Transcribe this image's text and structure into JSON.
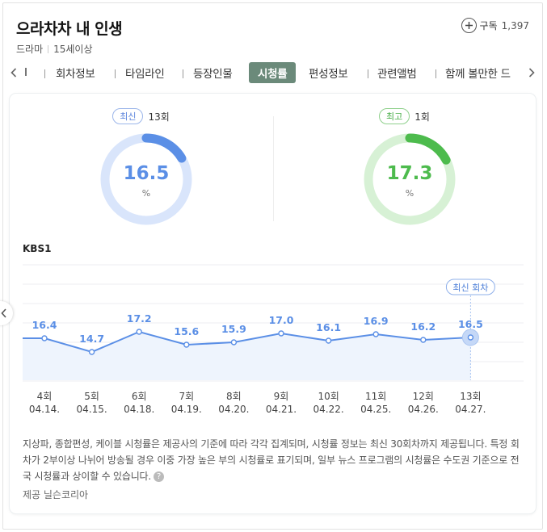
{
  "header": {
    "title": "으라차차 내 인생",
    "genre": "드라마",
    "rating": "15세이상",
    "subscribe_label": "구독",
    "subscribe_count": "1,397"
  },
  "tabs": [
    {
      "label": "I",
      "active": false
    },
    {
      "label": "회차정보",
      "active": false
    },
    {
      "label": "타임라인",
      "active": false
    },
    {
      "label": "등장인물",
      "active": false
    },
    {
      "label": "시청률",
      "active": true
    },
    {
      "label": "편성정보",
      "active": false
    },
    {
      "label": "관련앨범",
      "active": false
    },
    {
      "label": "함께 볼만한 드",
      "active": false
    }
  ],
  "stats": {
    "latest": {
      "badge": "최신",
      "episode": "13회",
      "value": "16.5",
      "unit": "%",
      "fraction": 0.165,
      "color": "#5b8fe6",
      "track": "#d9e5fb"
    },
    "best": {
      "badge": "최고",
      "episode": "1회",
      "value": "17.3",
      "unit": "%",
      "fraction": 0.173,
      "color": "#4dbb4d",
      "track": "#d7f1d5"
    }
  },
  "channel": "KBS1",
  "chart_data": {
    "type": "line",
    "categories": [
      "4회",
      "5회",
      "6회",
      "7회",
      "8회",
      "9회",
      "10회",
      "11회",
      "12회",
      "13회"
    ],
    "dates": [
      "04.14.",
      "04.15.",
      "04.18.",
      "04.19.",
      "04.20.",
      "04.21.",
      "04.22.",
      "04.25.",
      "04.26.",
      "04.27."
    ],
    "series": [
      {
        "values": [
          16.4,
          14.7,
          17.2,
          15.6,
          15.9,
          17.0,
          16.1,
          16.9,
          16.2,
          16.5
        ]
      }
    ],
    "highlight_index": 9,
    "highlight_label": "최신 회차",
    "line_color": "#5b8fe6",
    "fill_color": "#eef4fd"
  },
  "notes": {
    "text": "지상파, 종합편성, 케이블 시청률은 제공사의 기준에 따라 각각 집계되며, 시청률 정보는 최신 30회차까지 제공됩니다. 특정 회차가 2부이상 나뉘어 방송될 경우 이중 가장 높은 부의 시청률로 표기되며, 일부 뉴스 프로그램의 시청률은 수도권 기준으로 전국 시청률과 상이할 수 있습니다.",
    "help_icon": "?",
    "source": "제공 닐슨코리아"
  }
}
